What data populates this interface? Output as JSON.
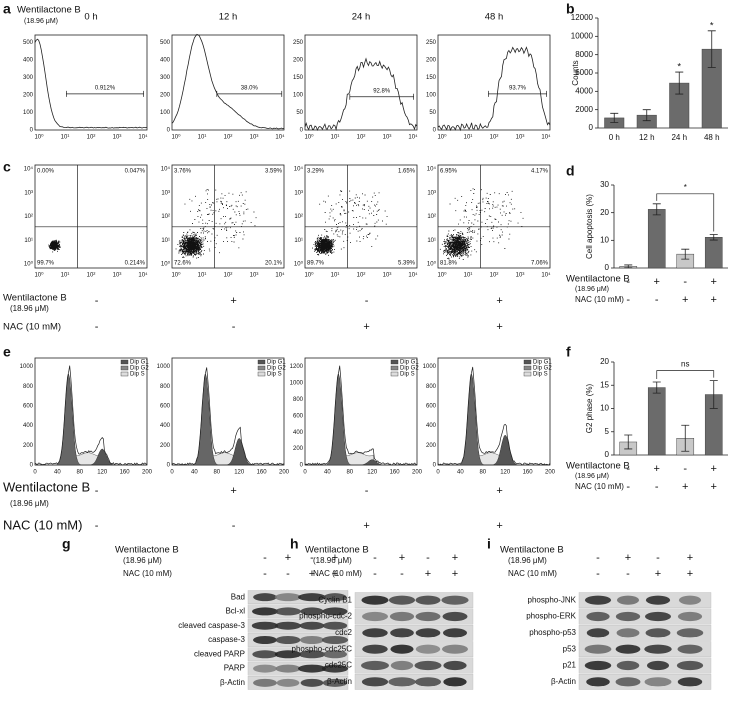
{
  "panel_a": {
    "letter": "a",
    "treatment": "Wentilactone B",
    "dose": "(18.96 μM)",
    "xticks": [
      "10⁰",
      "10¹",
      "10²",
      "10³",
      "10⁴"
    ],
    "plots": [
      {
        "time": "0 h",
        "yticks": [
          "0",
          "100",
          "200",
          "300",
          "400",
          "500"
        ],
        "percent": "0.912%"
      },
      {
        "time": "12 h",
        "yticks": [
          "0",
          "100",
          "200",
          "300",
          "400",
          "500"
        ],
        "percent": "38.0%"
      },
      {
        "time": "24 h",
        "yticks": [
          "0",
          "50",
          "100",
          "150",
          "200",
          "250"
        ],
        "percent": "92.8%"
      },
      {
        "time": "48 h",
        "yticks": [
          "0",
          "50",
          "100",
          "150",
          "200",
          "250"
        ],
        "percent": "93.7%"
      }
    ]
  },
  "panel_c": {
    "letter": "c",
    "xticks": [
      "10⁰",
      "10¹",
      "10²",
      "10³",
      "10⁴"
    ],
    "yticks": [
      "10⁰",
      "10¹",
      "10²",
      "10³",
      "10⁴"
    ],
    "plots": [
      {
        "quadrants": [
          "0.00%",
          "0.047%",
          "99.7%",
          "0.214%"
        ]
      },
      {
        "quadrants": [
          "3.76%",
          "3.59%",
          "72.6%",
          "20.1%"
        ]
      },
      {
        "quadrants": [
          "3.29%",
          "1.65%",
          "89.7%",
          "5.39%"
        ]
      },
      {
        "quadrants": [
          "6.95%",
          "4.17%",
          "81.8%",
          "7.06%"
        ]
      }
    ],
    "rows": [
      {
        "label": "Wentilactone B",
        "sub": "(18.96 μM)",
        "signs": [
          "-",
          "+",
          "-",
          "+"
        ]
      },
      {
        "label": "NAC (10 mM)",
        "signs": [
          "-",
          "-",
          "+",
          "+"
        ]
      }
    ]
  },
  "panel_e": {
    "letter": "e",
    "legend": [
      "Dip G1",
      "Dip G2",
      "Dip S"
    ],
    "xticks": [
      "0",
      "40",
      "80",
      "120",
      "160",
      "200"
    ],
    "plots": [
      {
        "yticks": [
          "0",
          "200",
          "400",
          "600",
          "800",
          "1000"
        ]
      },
      {
        "yticks": [
          "0",
          "200",
          "400",
          "600",
          "800",
          "1000"
        ]
      },
      {
        "yticks": [
          "0",
          "200",
          "400",
          "600",
          "800",
          "1000",
          "1200"
        ]
      },
      {
        "yticks": [
          "0",
          "200",
          "400",
          "600",
          "800",
          "1000"
        ]
      }
    ],
    "rows": [
      {
        "label": "Wentilactone B",
        "sub": "(18.96 μM)",
        "signs": [
          "-",
          "+",
          "-",
          "+"
        ]
      },
      {
        "label": "NAC (10 mM)",
        "signs": [
          "-",
          "-",
          "+",
          "+"
        ]
      }
    ]
  },
  "chart_data": [
    {
      "type": "bar",
      "letter": "b",
      "ylabel": "Counts",
      "categories": [
        "0 h",
        "12 h",
        "24 h",
        "48 h"
      ],
      "values": [
        1100,
        1400,
        4900,
        8600
      ],
      "errors": [
        500,
        600,
        1200,
        2000
      ],
      "colors": [
        "#6b6b6b",
        "#6b6b6b",
        "#6b6b6b",
        "#6b6b6b"
      ],
      "markers": [
        null,
        null,
        "*",
        "*"
      ],
      "ylim": [
        0,
        12000
      ],
      "yticks": [
        0,
        2000,
        4000,
        6000,
        8000,
        10000,
        12000
      ]
    },
    {
      "type": "bar",
      "letter": "d",
      "ylabel": "Cell apoptosis (%)",
      "values": [
        0.6,
        21.2,
        5,
        11.1
      ],
      "errors": [
        0.5,
        2,
        1.8,
        1
      ],
      "colors": [
        "#c8c8c8",
        "#6b6b6b",
        "#c8c8c8",
        "#6b6b6b"
      ],
      "annotation": "*",
      "ylim": [
        0,
        30
      ],
      "yticks": [
        0,
        10,
        20,
        30
      ],
      "rows": [
        {
          "label": "Wentilactone B",
          "sub": "(18.96 μM)",
          "signs": [
            "-",
            "+",
            "-",
            "+"
          ]
        },
        {
          "label": "NAC (10 mM)",
          "signs": [
            "-",
            "-",
            "+",
            "+"
          ]
        }
      ]
    },
    {
      "type": "bar",
      "letter": "f",
      "ylabel": "G2 phase (%)",
      "values": [
        2.8,
        14.5,
        3.6,
        13
      ],
      "errors": [
        1.5,
        1.2,
        2.8,
        3
      ],
      "colors": [
        "#c8c8c8",
        "#6b6b6b",
        "#c8c8c8",
        "#6b6b6b"
      ],
      "annotation": "ns",
      "ylim": [
        0,
        20
      ],
      "yticks": [
        0,
        5,
        10,
        15,
        20
      ],
      "rows": [
        {
          "label": "Wentilactone B",
          "sub": "(18.96 μM)",
          "signs": [
            "-",
            "+",
            "-",
            "+"
          ]
        },
        {
          "label": "NAC (10 mM)",
          "signs": [
            "-",
            "-",
            "+",
            "+"
          ]
        }
      ]
    }
  ],
  "blots": [
    {
      "letter": "g",
      "treatment": "Wentilactone B",
      "dose": "(18.96 μM)",
      "nac": "NAC (10 mM)",
      "signs_wb": [
        "-",
        "+",
        "-",
        "+"
      ],
      "signs_nac": [
        "-",
        "-",
        "+",
        "+"
      ],
      "proteins": [
        "Bad",
        "Bcl-xl",
        "cleaved caspase-3",
        "caspase-3",
        "cleaved PARP",
        "PARP",
        "β-Actin"
      ]
    },
    {
      "letter": "h",
      "treatment": "Wentilactone B",
      "dose": "(18.96 μM)",
      "nac": "NAC (10 mM)",
      "signs_wb": [
        "-",
        "+",
        "-",
        "+"
      ],
      "signs_nac": [
        "-",
        "-",
        "+",
        "+"
      ],
      "proteins": [
        "Cyclin B1",
        "phospho-cdc-2",
        "cdc2",
        "phospho-cdc25C",
        "cdc25C",
        "β-Actin"
      ]
    },
    {
      "letter": "i",
      "treatment": "Wentilactone B",
      "dose": "(18.96 μM)",
      "nac": "NAC (10 mM)",
      "signs_wb": [
        "-",
        "+",
        "-",
        "+"
      ],
      "signs_nac": [
        "-",
        "-",
        "+",
        "+"
      ],
      "proteins": [
        "phospho-JNK",
        "phospho-ERK",
        "phospho-p53",
        "p53",
        "p21",
        "β-Actin"
      ]
    }
  ]
}
